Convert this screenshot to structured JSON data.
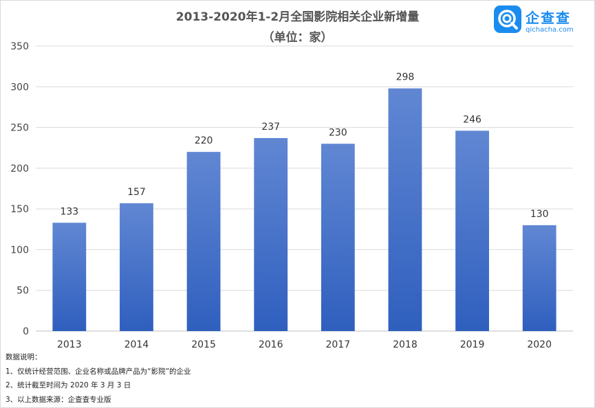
{
  "title": "2013-2020年1-2月全国影院相关企业新增量",
  "subtitle": "（单位：家）",
  "logo": {
    "name": "企查查",
    "url": "qichacha.com"
  },
  "colors": {
    "bar_top": "#6187d3",
    "bar_bottom": "#2f5fbe",
    "grid": "#d9d9d9",
    "brand": "#1a8cf0"
  },
  "chart_data": {
    "type": "bar",
    "categories": [
      "2013",
      "2014",
      "2015",
      "2016",
      "2017",
      "2018",
      "2019",
      "2020"
    ],
    "values": [
      133,
      157,
      220,
      237,
      230,
      298,
      246,
      130
    ],
    "ylim": [
      0,
      350
    ],
    "yticks": [
      0,
      50,
      100,
      150,
      200,
      250,
      300,
      350
    ],
    "grid": true,
    "data_labels": true
  },
  "notes": {
    "heading": "数据说明：",
    "lines": [
      "1、仅统计经营范围、企业名称或品牌产品为“影院”的企业",
      "2、统计截至时间为 2020 年 3 月 3 日",
      "3、以上数据来源：企查查专业版"
    ]
  }
}
